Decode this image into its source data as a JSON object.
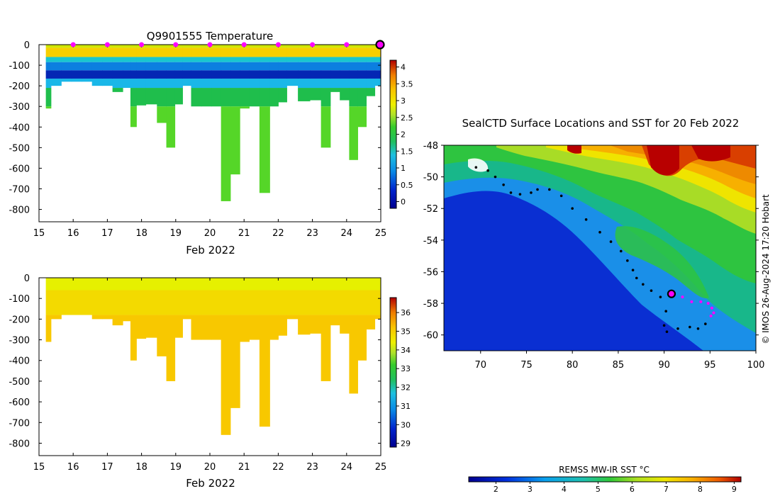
{
  "chart_data": [
    {
      "type": "heatmap",
      "title": "Q9901555  Temperature",
      "xlabel": "Feb 2022",
      "ylabel": "",
      "xlim": [
        15,
        25
      ],
      "ylim": [
        -860,
        0
      ],
      "x_ticks": [
        15,
        16,
        17,
        18,
        19,
        20,
        21,
        22,
        23,
        24,
        25
      ],
      "y_ticks": [
        0,
        -100,
        -200,
        -300,
        -400,
        -500,
        -600,
        -700,
        -800
      ],
      "colorbar": {
        "min": -0.2,
        "max": 4.2,
        "ticks": [
          4,
          3.5,
          3,
          2.5,
          2,
          1.5,
          1,
          0.5,
          0
        ]
      },
      "marker_days": [
        16,
        17,
        18,
        19,
        20,
        21,
        22,
        23,
        24
      ],
      "current_marker_day": 25,
      "profile_depths": [
        {
          "x": 15.2,
          "depth": 310
        },
        {
          "x": 15.5,
          "depth": 200
        },
        {
          "x": 15.8,
          "depth": 180
        },
        {
          "x": 16.1,
          "depth": 180
        },
        {
          "x": 16.4,
          "depth": 180
        },
        {
          "x": 16.7,
          "depth": 200
        },
        {
          "x": 17.0,
          "depth": 200
        },
        {
          "x": 17.3,
          "depth": 230
        },
        {
          "x": 17.6,
          "depth": 210
        },
        {
          "x": 17.75,
          "depth": 400
        },
        {
          "x": 17.95,
          "depth": 295
        },
        {
          "x": 18.3,
          "depth": 290
        },
        {
          "x": 18.6,
          "depth": 380
        },
        {
          "x": 18.85,
          "depth": 500
        },
        {
          "x": 19.1,
          "depth": 290
        },
        {
          "x": 19.3,
          "depth": 200
        },
        {
          "x": 19.6,
          "depth": 300
        },
        {
          "x": 19.9,
          "depth": 300
        },
        {
          "x": 20.2,
          "depth": 300
        },
        {
          "x": 20.45,
          "depth": 760
        },
        {
          "x": 20.75,
          "depth": 630
        },
        {
          "x": 21.0,
          "depth": 310
        },
        {
          "x": 21.3,
          "depth": 300
        },
        {
          "x": 21.6,
          "depth": 720
        },
        {
          "x": 21.9,
          "depth": 300
        },
        {
          "x": 22.1,
          "depth": 280
        },
        {
          "x": 22.4,
          "depth": 200
        },
        {
          "x": 22.75,
          "depth": 275
        },
        {
          "x": 23.1,
          "depth": 270
        },
        {
          "x": 23.4,
          "depth": 500
        },
        {
          "x": 23.65,
          "depth": 230
        },
        {
          "x": 23.95,
          "depth": 270
        },
        {
          "x": 24.2,
          "depth": 560
        },
        {
          "x": 24.45,
          "depth": 400
        },
        {
          "x": 24.7,
          "depth": 250
        },
        {
          "x": 24.95,
          "depth": 200
        }
      ]
    },
    {
      "type": "heatmap",
      "title": "",
      "xlabel": "Feb 2022",
      "ylabel": "",
      "xlim": [
        15,
        25
      ],
      "ylim": [
        -860,
        0
      ],
      "x_ticks": [
        15,
        16,
        17,
        18,
        19,
        20,
        21,
        22,
        23,
        24,
        25
      ],
      "y_ticks": [
        0,
        -100,
        -200,
        -300,
        -400,
        -500,
        -600,
        -700,
        -800
      ],
      "colorbar": {
        "min": 28.8,
        "max": 36.8,
        "ticks": [
          36,
          35,
          34,
          33,
          32,
          31,
          30,
          29
        ]
      }
    },
    {
      "type": "heatmap",
      "title": "SealCTD Surface Locations and SST for 20 Feb 2022",
      "xlabel": "",
      "ylabel": "",
      "xlim": [
        66,
        100
      ],
      "ylim": [
        -61,
        -48
      ],
      "x_ticks": [
        70,
        75,
        80,
        85,
        90,
        95,
        100
      ],
      "y_ticks": [
        -48,
        -50,
        -52,
        -54,
        -56,
        -58,
        -60
      ],
      "colorbar": {
        "label": "REMSS MW-IR SST °C",
        "min": 1.2,
        "max": 9.2,
        "ticks": [
          2,
          3,
          4,
          5,
          6,
          7,
          8,
          9
        ]
      },
      "credit": "© IMOS 26-Aug-2024 17:20 Hobart",
      "track_black": [
        [
          69.5,
          -49.4
        ],
        [
          70.8,
          -49.6
        ],
        [
          71.6,
          -50.0
        ],
        [
          72.5,
          -50.5
        ],
        [
          73.3,
          -51.0
        ],
        [
          74.3,
          -51.1
        ],
        [
          75.5,
          -51.0
        ],
        [
          76.2,
          -50.8
        ],
        [
          77.5,
          -50.8
        ],
        [
          78.8,
          -51.2
        ],
        [
          80.0,
          -52.0
        ],
        [
          81.5,
          -52.7
        ],
        [
          83.0,
          -53.5
        ],
        [
          84.2,
          -54.1
        ],
        [
          85.3,
          -54.7
        ],
        [
          86.0,
          -55.3
        ],
        [
          86.6,
          -55.9
        ],
        [
          87.0,
          -56.4
        ],
        [
          87.7,
          -56.8
        ],
        [
          88.6,
          -57.2
        ],
        [
          89.6,
          -57.6
        ],
        [
          90.2,
          -58.5
        ],
        [
          90.0,
          -59.4
        ],
        [
          90.3,
          -59.8
        ],
        [
          91.5,
          -59.6
        ],
        [
          92.8,
          -59.5
        ],
        [
          93.7,
          -59.6
        ],
        [
          94.5,
          -59.3
        ]
      ],
      "track_magenta": [
        [
          92.0,
          -57.6
        ],
        [
          93.0,
          -57.9
        ],
        [
          94.0,
          -57.9
        ],
        [
          94.8,
          -58.0
        ],
        [
          95.2,
          -58.3
        ],
        [
          95.4,
          -58.6
        ],
        [
          95.1,
          -58.8
        ]
      ],
      "current_location": [
        90.8,
        -57.4
      ]
    }
  ]
}
